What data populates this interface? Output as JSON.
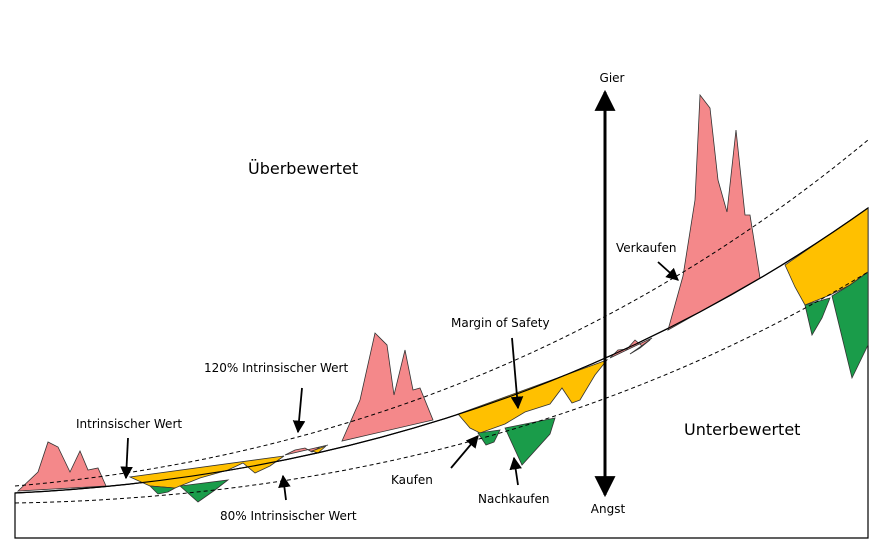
{
  "labels": {
    "overvalued": "Überbewertet",
    "undervalued": "Unterbewertet",
    "greed": "Gier",
    "fear": "Angst",
    "sell": "Verkaufen",
    "margin_of_safety": "Margin of Safety",
    "value_120": "120% Intrinsischer Wert",
    "intrinsic": "Intrinsischer Wert",
    "buy": "Kaufen",
    "buy_more": "Nachkaufen",
    "value_80": "80% Intrinsischer Wert"
  }
}
